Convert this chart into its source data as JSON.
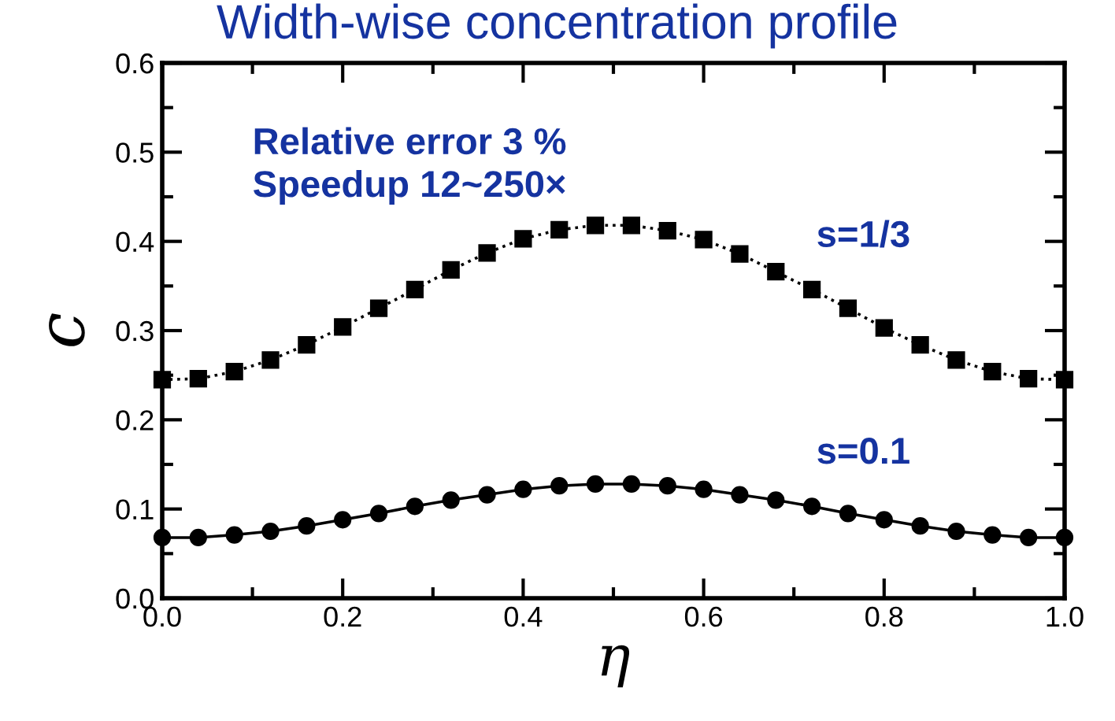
{
  "chart_data": {
    "type": "line",
    "title": "Width-wise concentration profile",
    "xlabel": "η",
    "ylabel": "c",
    "x": [
      0,
      0.04,
      0.08,
      0.12,
      0.16,
      0.2,
      0.24,
      0.28,
      0.32,
      0.36,
      0.4,
      0.44,
      0.48,
      0.52,
      0.56,
      0.6,
      0.64,
      0.68,
      0.72,
      0.76,
      0.8,
      0.84,
      0.88,
      0.92,
      0.96,
      1.0
    ],
    "series": [
      {
        "name": "s=1/3",
        "color": "#000000",
        "marker": "square",
        "line_style": "dotted",
        "values": [
          0.245,
          0.246,
          0.254,
          0.267,
          0.284,
          0.304,
          0.325,
          0.346,
          0.368,
          0.387,
          0.403,
          0.413,
          0.418,
          0.418,
          0.412,
          0.402,
          0.386,
          0.366,
          0.346,
          0.325,
          0.303,
          0.284,
          0.267,
          0.254,
          0.246,
          0.245
        ]
      },
      {
        "name": "s=0.1",
        "color": "#000000",
        "marker": "circle",
        "line_style": "solid",
        "values": [
          0.068,
          0.068,
          0.071,
          0.075,
          0.081,
          0.088,
          0.095,
          0.103,
          0.11,
          0.116,
          0.122,
          0.126,
          0.128,
          0.128,
          0.126,
          0.122,
          0.116,
          0.11,
          0.103,
          0.095,
          0.088,
          0.081,
          0.075,
          0.071,
          0.068,
          0.068
        ]
      }
    ],
    "annotations": [
      "Relative error 3 %",
      "Speedup 12~250×"
    ],
    "xlim": [
      0,
      1.0
    ],
    "ylim": [
      0,
      0.6
    ],
    "xticks": [
      {
        "value": 0,
        "label": "0.0"
      },
      0.2,
      0.4,
      0.6,
      0.8,
      {
        "value": 1.0,
        "label": "1.0"
      }
    ],
    "yticks": [
      {
        "value": 0,
        "label": "0.0"
      },
      0.1,
      0.2,
      0.3,
      0.4,
      0.5,
      0.6
    ],
    "grid": false,
    "legend": false
  }
}
